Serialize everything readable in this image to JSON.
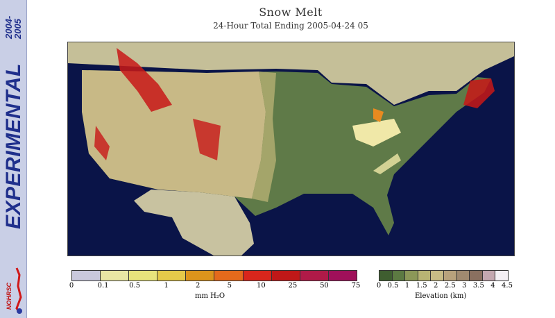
{
  "sidebar": {
    "year_top": "2004-",
    "year_bottom": "2005",
    "label": "EXPERIMENTAL",
    "logo_text": "NOHRSC"
  },
  "header": {
    "title": "Snow Melt",
    "subtitle": "24-Hour Total Ending 2005-04-24 05"
  },
  "colors": {
    "ocean": "#0a1448",
    "canada": "#c5bf98",
    "mexico": "#c8c2a0",
    "lowland": "#5f7a48",
    "midland": "#a4a56a",
    "highland": "#c8b986",
    "melt_low": "#f0e8a8",
    "melt_mid": "#e88a20",
    "melt_high": "#c81818"
  },
  "melt_legend": {
    "colors": [
      "#c9c8dc",
      "#e9e6a4",
      "#e8e37c",
      "#e5c94a",
      "#dc941c",
      "#e46a1c",
      "#d8261c",
      "#c01818",
      "#b01a48",
      "#a0105a"
    ],
    "labels": [
      "0",
      "0.1",
      "0.5",
      "1",
      "2",
      "5",
      "10",
      "25",
      "50",
      "75"
    ],
    "unit": "mm H₂O"
  },
  "elevation_legend": {
    "colors": [
      "#3f5e30",
      "#5c7a42",
      "#8c9858",
      "#b8b474",
      "#c8bc86",
      "#b8a27c",
      "#a08a70",
      "#8a7060",
      "#c4a8b0",
      "#f4f0f4"
    ],
    "labels": [
      "0",
      "0.5",
      "1",
      "1.5",
      "2",
      "2.5",
      "3",
      "3.5",
      "4",
      "4.5"
    ],
    "unit": "Elevation (km)"
  }
}
